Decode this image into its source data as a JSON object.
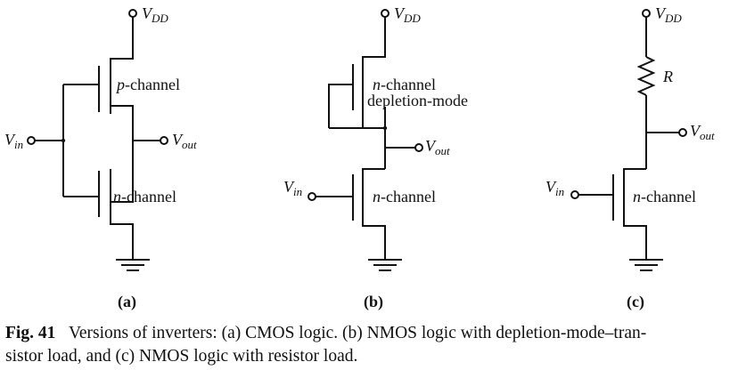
{
  "supply": {
    "label": "V",
    "sub": "DD"
  },
  "input": {
    "label": "V",
    "sub": "in"
  },
  "output": {
    "label": "V",
    "sub": "out"
  },
  "panel_a": {
    "tag": "(a)",
    "upper_prefix": "p",
    "upper_suffix": "-channel",
    "lower_prefix": "n",
    "lower_suffix": "-channel"
  },
  "panel_b": {
    "tag": "(b)",
    "load_prefix": "n",
    "load_suffix": "-channel",
    "load_mode": "depletion-mode",
    "driver_prefix": "n",
    "driver_suffix": "-channel"
  },
  "panel_c": {
    "tag": "(c)",
    "resistor_label": "R",
    "driver_prefix": "n",
    "driver_suffix": "-channel"
  },
  "caption": {
    "fig": "Fig. 41",
    "line1": "Versions of inverters: (a) CMOS logic. (b) NMOS logic with depletion-mode–tran-",
    "line2": "sistor load, and (c) NMOS logic with resistor load."
  }
}
